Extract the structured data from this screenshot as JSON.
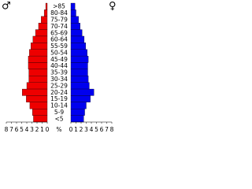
{
  "chart_data": {
    "type": "pyramid",
    "categories": [
      ">85",
      "80-84",
      "75-79",
      "70-74",
      "65-69",
      "60-64",
      "55-59",
      "50-54",
      "45-49",
      "40-44",
      "35-39",
      "30-34",
      "25-29",
      "20-24",
      "15-19",
      "10-14",
      "5-9",
      "<5"
    ],
    "series": [
      {
        "name": "♂",
        "color": "#ee0000",
        "values": [
          0.3,
          0.6,
          1.2,
          1.7,
          2.3,
          2.8,
          3.2,
          3.5,
          3.7,
          3.7,
          3.6,
          3.6,
          4.0,
          4.9,
          4.1,
          3.4,
          2.9,
          2.7
        ]
      },
      {
        "name": "♀",
        "color": "#0000ee",
        "values": [
          0.8,
          1.0,
          1.5,
          1.8,
          2.2,
          2.6,
          2.9,
          3.2,
          3.4,
          3.3,
          3.3,
          3.4,
          3.6,
          4.5,
          3.8,
          3.0,
          2.7,
          2.5
        ]
      }
    ],
    "xlabel": "%",
    "xlim": [
      0,
      8
    ],
    "xticks": [
      0,
      1,
      2,
      3,
      4,
      5,
      6,
      7,
      8
    ]
  }
}
